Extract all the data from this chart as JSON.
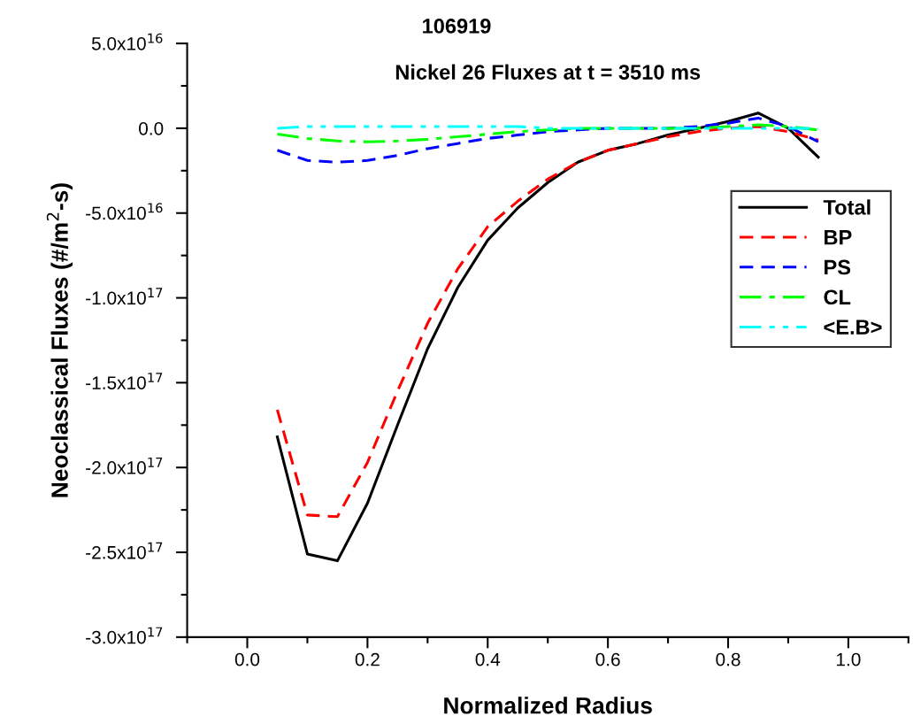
{
  "chart_data": {
    "type": "line",
    "title": "106919",
    "subtitle": "Nickel 26 Fluxes at t = 3510 ms",
    "xlabel": "Normalized Radius",
    "ylabel": "Neoclassical Fluxes (#/m$^{2}$-s)",
    "x": [
      0.05,
      0.1,
      0.15,
      0.2,
      0.25,
      0.3,
      0.35,
      0.4,
      0.45,
      0.5,
      0.55,
      0.6,
      0.65,
      0.7,
      0.75,
      0.8,
      0.85,
      0.9,
      0.95
    ],
    "series": [
      {
        "name": "Total",
        "color": "#000000",
        "line_style": "solid",
        "values": [
          -1.82e+17,
          -2.51e+17,
          -2.55e+17,
          -2.21e+17,
          -1.75e+17,
          -1.3e+17,
          -9.4e+16,
          -6.6e+16,
          -4.7e+16,
          -3.2e+16,
          -2e+16,
          -1.3e+16,
          -9000000000000000.0,
          -4000000000000000.0,
          0,
          4000000000000000.0,
          9000000000000000.0,
          0,
          -1.7e+16
        ]
      },
      {
        "name": "BP",
        "color": "#ff0000",
        "line_style": "dashed",
        "values": [
          -1.66e+17,
          -2.28e+17,
          -2.29e+17,
          -1.97e+17,
          -1.55e+17,
          -1.15e+17,
          -8.3e+16,
          -5.8e+16,
          -4.3e+16,
          -3e+16,
          -2e+16,
          -1.3e+16,
          -9000000000000000.0,
          -5000000000000000.0,
          -2000000000000000.0,
          0,
          1000000000000000.0,
          -2000000000000000.0,
          -7000000000000000.0
        ]
      },
      {
        "name": "PS",
        "color": "#0000ff",
        "line_style": "dashed",
        "values": [
          -1.3e+16,
          -1.9e+16,
          -2e+16,
          -1.9e+16,
          -1.6e+16,
          -1.2e+16,
          -9000000000000000.0,
          -6000000000000000.0,
          -4000000000000000.0,
          -2000000000000000.0,
          -1000000000000000.0,
          0,
          0,
          0,
          1000000000000000.0,
          3000000000000000.0,
          6000000000000000.0,
          1000000000000000.0,
          -8000000000000000.0
        ]
      },
      {
        "name": "CL",
        "color": "#00ff00",
        "line_style": "dashdot",
        "values": [
          -3500000000000000.0,
          -6000000000000000.0,
          -7500000000000000.0,
          -8000000000000000.0,
          -7500000000000000.0,
          -6500000000000000.0,
          -5000000000000000.0,
          -3500000000000000.0,
          -2000000000000000.0,
          -1000000000000000.0,
          0,
          0,
          0,
          0,
          0,
          1000000000000000.0,
          2000000000000000.0,
          1000000000000000.0,
          -1000000000000000.0
        ]
      },
      {
        "name": "<E.B>",
        "color": "#00ffff",
        "line_style": "dashdotdot",
        "values": [
          0,
          1000000000000000.0,
          1000000000000000.0,
          1000000000000000.0,
          1000000000000000.0,
          1000000000000000.0,
          1000000000000000.0,
          1000000000000000.0,
          1000000000000000.0,
          0,
          0,
          0,
          0,
          0,
          0,
          0,
          0,
          0,
          0
        ]
      }
    ],
    "xlim": [
      -0.1,
      1.1
    ],
    "xticks": [
      {
        "value": 0.0,
        "label": "0.0"
      },
      0.2,
      0.4,
      0.6,
      0.8,
      {
        "value": 1.0,
        "label": "1.0"
      }
    ],
    "ylim": [
      -3e+17,
      5e+16
    ],
    "yticks": [
      {
        "value": -3e+17,
        "label": "-3.0x10$^{17}$"
      },
      {
        "value": -2.5e+17,
        "label": "-2.5x10$^{17}$"
      },
      {
        "value": -2e+17,
        "label": "-2.0x10$^{17}$"
      },
      {
        "value": -1.5e+17,
        "label": "-1.5x10$^{17}$"
      },
      {
        "value": -1e+17,
        "label": "-1.0x10$^{17}$"
      },
      {
        "value": -5e+16,
        "label": "-5.0x10$^{16}$"
      },
      {
        "value": 0,
        "label": "0.0"
      },
      {
        "value": 5e+16,
        "label": "5.0x10$^{16}$"
      }
    ],
    "legend": "right",
    "grid": false
  }
}
